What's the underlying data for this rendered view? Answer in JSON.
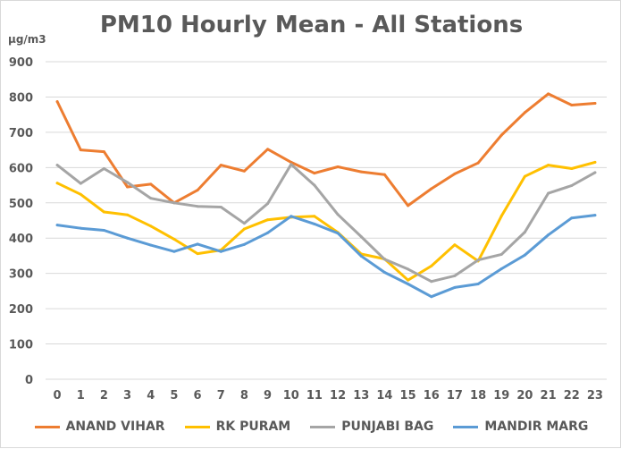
{
  "chart_data": {
    "type": "line",
    "title": "PM10 Hourly Mean - All Stations",
    "ylabel": "µg/m3",
    "xlabel": "",
    "ylim": [
      0,
      900
    ],
    "yticks": [
      0,
      100,
      200,
      300,
      400,
      500,
      600,
      700,
      800,
      900
    ],
    "grid": true,
    "legend_position": "bottom",
    "categories": [
      "0",
      "1",
      "2",
      "3",
      "4",
      "5",
      "6",
      "7",
      "8",
      "9",
      "10",
      "11",
      "12",
      "13",
      "14",
      "15",
      "16",
      "17",
      "18",
      "19",
      "20",
      "21",
      "22",
      "23"
    ],
    "series": [
      {
        "name": "ANAND VIHAR",
        "color": "#ED7D31",
        "values": [
          787,
          650,
          645,
          545,
          553,
          500,
          536,
          607,
          590,
          652,
          615,
          584,
          602,
          588,
          580,
          492,
          540,
          582,
          613,
          692,
          756,
          809,
          777,
          782
        ]
      },
      {
        "name": "RK PURAM",
        "color": "#FFC000",
        "values": [
          556,
          524,
          474,
          466,
          434,
          397,
          356,
          366,
          426,
          452,
          459,
          462,
          416,
          355,
          341,
          281,
          321,
          381,
          335,
          463,
          575,
          607,
          597,
          615
        ]
      },
      {
        "name": "PUNJABI BAG",
        "color": "#A5A5A5",
        "values": [
          607,
          555,
          597,
          558,
          513,
          500,
          490,
          488,
          442,
          498,
          609,
          550,
          467,
          404,
          340,
          312,
          277,
          293,
          338,
          354,
          417,
          527,
          549,
          586
        ]
      },
      {
        "name": "MANDIR MARG",
        "color": "#5B9BD5",
        "values": [
          437,
          428,
          422,
          400,
          380,
          362,
          383,
          362,
          382,
          415,
          462,
          440,
          414,
          349,
          303,
          270,
          234,
          260,
          270,
          313,
          352,
          409,
          457,
          465
        ]
      }
    ]
  }
}
